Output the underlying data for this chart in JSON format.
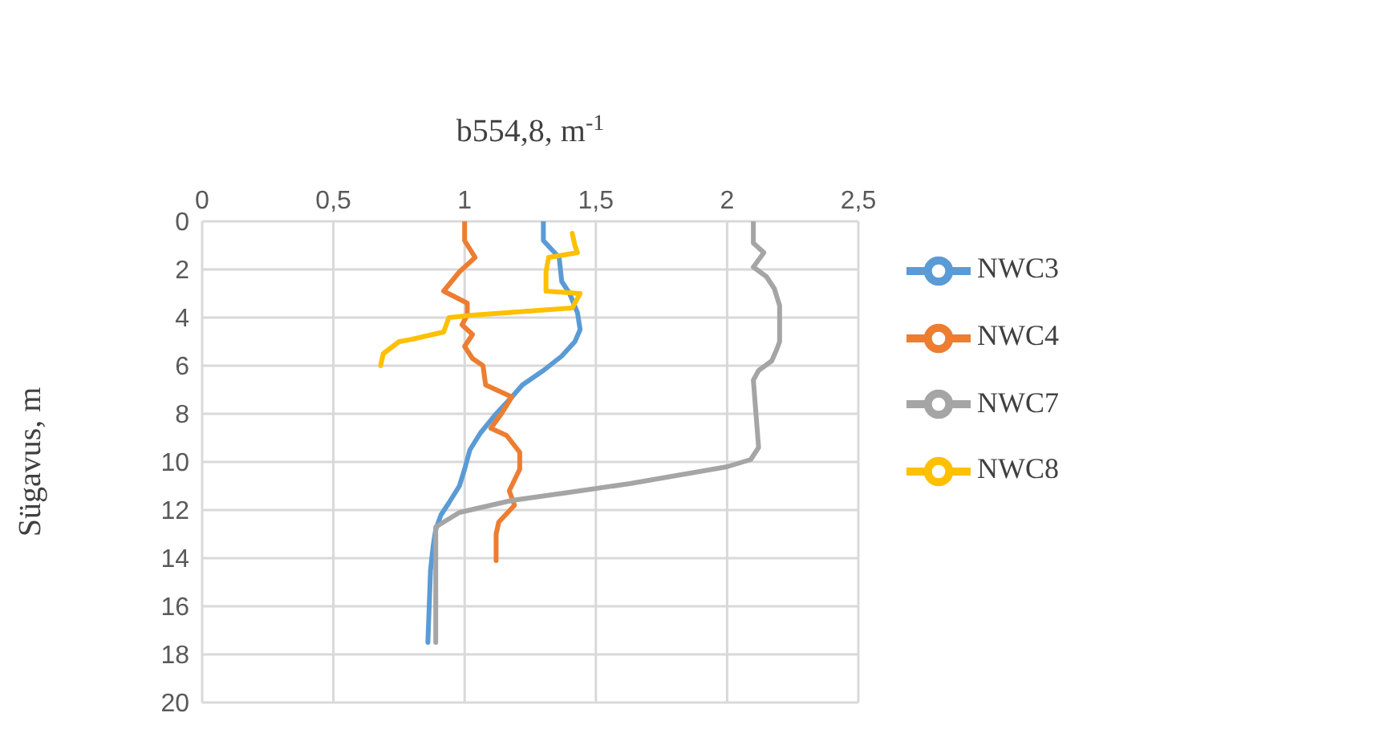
{
  "chart_data": {
    "type": "line",
    "xlabel": "b554,8, m$^{-1}$",
    "ylabel": "Sügavus, m",
    "xlim": [
      0,
      2.5
    ],
    "xticks": [
      0,
      {
        "value": 0.5,
        "label": "0,5"
      },
      1,
      {
        "value": 1.5,
        "label": "1,5"
      },
      2,
      {
        "value": 2.5,
        "label": "2,5"
      }
    ],
    "ylim": [
      20,
      0
    ],
    "yticks": [
      0,
      2,
      4,
      6,
      8,
      10,
      12,
      14,
      16,
      18,
      20
    ],
    "grid": true,
    "legend": "right",
    "series": [
      {
        "name": "NWC3",
        "color": "#5b9bd5",
        "x": [
          1.3,
          1.3,
          1.36,
          1.37,
          1.4,
          1.43,
          1.44,
          1.42,
          1.37,
          1.3,
          1.22,
          1.18,
          1.12,
          1.06,
          1.02,
          1.0,
          0.98,
          0.94,
          0.91,
          0.89,
          0.88,
          0.87,
          0.865,
          0.86
        ],
        "values": [
          0,
          0.8,
          1.5,
          2.5,
          3,
          3.8,
          4.5,
          5,
          5.6,
          6.2,
          6.8,
          7.3,
          8,
          8.8,
          9.5,
          10.3,
          11,
          11.7,
          12.2,
          12.8,
          13.5,
          14.5,
          16,
          17.5
        ]
      },
      {
        "name": "NWC4",
        "color": "#ed7d31",
        "x": [
          1.0,
          1.0,
          1.04,
          0.98,
          0.92,
          1.01,
          1.01,
          0.99,
          1.03,
          1.0,
          1.03,
          1.07,
          1.08,
          1.18,
          1.14,
          1.1,
          1.16,
          1.21,
          1.21,
          1.17,
          1.19,
          1.13,
          1.12,
          1.12
        ],
        "values": [
          0,
          0.8,
          1.5,
          2.1,
          2.9,
          3.4,
          3.9,
          4.3,
          4.7,
          5.2,
          5.7,
          6,
          6.8,
          7.3,
          8,
          8.6,
          8.9,
          9.6,
          10.3,
          11.2,
          11.8,
          12.5,
          13,
          14.1
        ]
      },
      {
        "name": "NWC7",
        "color": "#a5a5a5",
        "x": [
          2.1,
          2.1,
          2.14,
          2.1,
          2.15,
          2.18,
          2.2,
          2.2,
          2.19,
          2.17,
          2.12,
          2.1,
          2.11,
          2.12,
          2.09,
          2.0,
          1.63,
          1.44,
          1.18,
          0.98,
          0.89,
          0.89,
          0.89
        ],
        "values": [
          0,
          0.9,
          1.3,
          1.9,
          2.3,
          2.8,
          3.5,
          5,
          5.3,
          5.8,
          6.2,
          6.6,
          8,
          9.4,
          9.9,
          10.2,
          10.9,
          11.2,
          11.6,
          12.1,
          12.7,
          14,
          17.5
        ]
      },
      {
        "name": "NWC8",
        "color": "#ffc000",
        "x": [
          1.41,
          1.42,
          1.43,
          1.32,
          1.31,
          1.31,
          1.44,
          1.41,
          1.03,
          0.94,
          0.92,
          0.8,
          0.75,
          0.69,
          0.68
        ],
        "values": [
          0.5,
          1.0,
          1.3,
          1.5,
          2.1,
          2.9,
          3.0,
          3.6,
          3.9,
          4.0,
          4.6,
          4.9,
          5.0,
          5.5,
          6.0
        ]
      }
    ]
  }
}
